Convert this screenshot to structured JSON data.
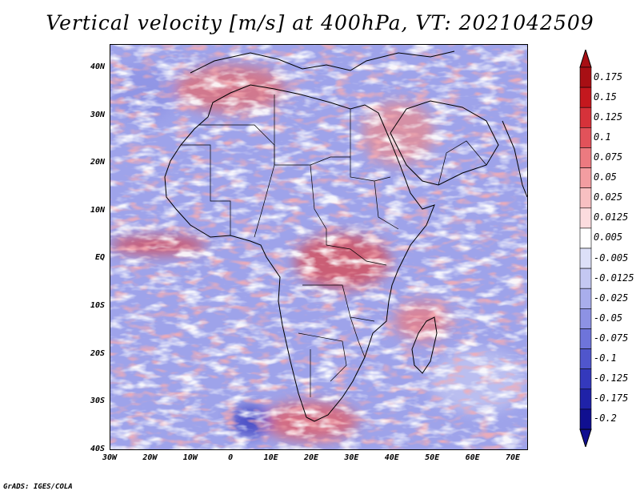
{
  "title": "Vertical velocity [m/s] at 400hPa, VT: 2021042509",
  "credit": "GrADS: IGES/COLA",
  "map": {
    "region": "Africa",
    "lat_labels": [
      "40N",
      "30N",
      "20N",
      "10N",
      "EQ",
      "10S",
      "20S",
      "30S",
      "40S"
    ],
    "lon_labels": [
      "30W",
      "20W",
      "10W",
      "0",
      "10E",
      "20E",
      "30E",
      "40E",
      "50E",
      "60E",
      "70E"
    ],
    "lat_range": [
      -40,
      45
    ],
    "lon_range": [
      -30,
      75
    ],
    "background_color": "#9aa0e8",
    "coastline_color": "#000000"
  },
  "colorbar": {
    "labels": [
      "0.175",
      "0.15",
      "0.125",
      "0.1",
      "0.075",
      "0.05",
      "0.025",
      "0.0125",
      "0.005",
      "-0.005",
      "-0.0125",
      "-0.025",
      "-0.05",
      "-0.075",
      "-0.1",
      "-0.125",
      "-0.175",
      "-0.2"
    ],
    "colors": [
      "#a80f14",
      "#c4181e",
      "#d6323a",
      "#e2525a",
      "#ec7a80",
      "#f39da1",
      "#f8c0c2",
      "#fcdcde",
      "#ffffff",
      "#dde0f8",
      "#c4c8f2",
      "#a9aeec",
      "#8d92e4",
      "#6e74da",
      "#5056cc",
      "#3439bc",
      "#1f22a8",
      "#100f90"
    ]
  }
}
